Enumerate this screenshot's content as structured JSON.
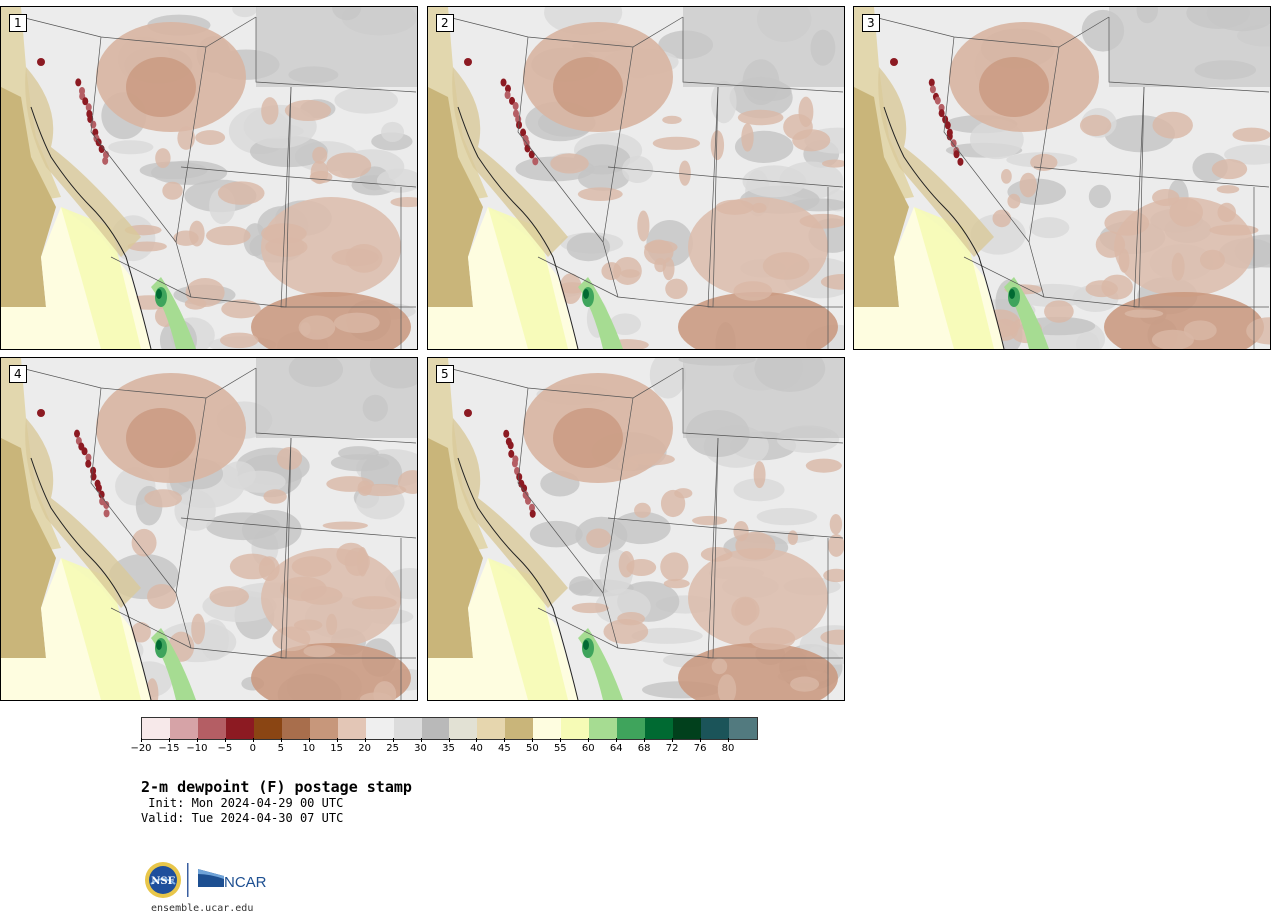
{
  "title": "2-m dewpoint (F) postage stamp",
  "init": " Init: Mon 2024-04-29 00 UTC",
  "valid": "Valid: Tue 2024-04-30 07 UTC",
  "site": "ensemble.ucar.edu",
  "panels": [
    {
      "label": "1"
    },
    {
      "label": "2"
    },
    {
      "label": "3"
    },
    {
      "label": "4"
    },
    {
      "label": "5"
    }
  ],
  "colorbar": {
    "colors": [
      "#f7e9ea",
      "#d6a3a7",
      "#b45e64",
      "#8c1a22",
      "#8a4513",
      "#a86e4c",
      "#c7977b",
      "#e3c6b6",
      "#efefef",
      "#dcdcdc",
      "#b9b9b9",
      "#e2e1d4",
      "#e6d6ae",
      "#c9b57a",
      "#fefde0",
      "#f6fbb6",
      "#a6dc92",
      "#3fa45c",
      "#006a32",
      "#01401c",
      "#1b5459",
      "#527a7f"
    ],
    "tick_labels": [
      "−20",
      "−15",
      "−10",
      "−5",
      "0",
      "5",
      "10",
      "15",
      "20",
      "25",
      "30",
      "35",
      "40",
      "45",
      "50",
      "55",
      "60",
      "64",
      "68",
      "72",
      "76",
      "80"
    ]
  },
  "logos": {
    "nsf_text": "NSF",
    "ncar_text": "NCAR"
  }
}
